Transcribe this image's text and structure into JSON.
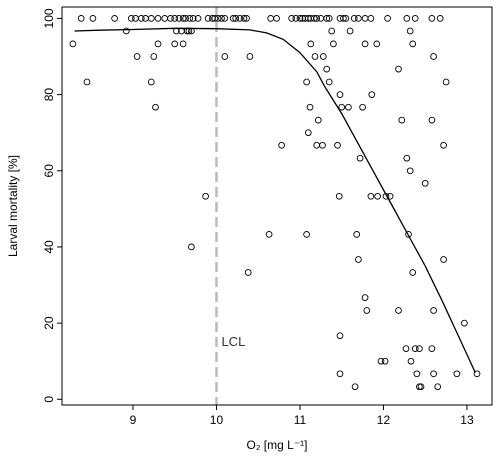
{
  "chart_data": {
    "type": "scatter",
    "xlabel": "O₂ [mg L⁻¹]",
    "ylabel": "Larval mortality [%]",
    "xlim": [
      8.15,
      13.3
    ],
    "ylim": [
      -1.5,
      103
    ],
    "xticks": [
      9,
      10,
      11,
      12,
      13
    ],
    "yticks": [
      0,
      20,
      40,
      60,
      80,
      100
    ],
    "grid": false,
    "legend": "none",
    "annotations": [
      {
        "text": "LCL",
        "x": 10.0,
        "style": "dashed vertical line",
        "color": "#bbbbbb"
      }
    ],
    "series": [
      {
        "kind": "points",
        "marker": "open circle",
        "color": "#000000",
        "points": [
          [
            8.38,
            100
          ],
          [
            8.52,
            100
          ],
          [
            8.78,
            100
          ],
          [
            8.98,
            100
          ],
          [
            9.03,
            100
          ],
          [
            9.1,
            100
          ],
          [
            9.15,
            100
          ],
          [
            9.22,
            100
          ],
          [
            9.3,
            100
          ],
          [
            9.38,
            100
          ],
          [
            9.45,
            100
          ],
          [
            9.5,
            100
          ],
          [
            9.55,
            100
          ],
          [
            9.6,
            100
          ],
          [
            9.63,
            100
          ],
          [
            9.68,
            100
          ],
          [
            9.72,
            100
          ],
          [
            9.78,
            100
          ],
          [
            9.9,
            100
          ],
          [
            9.95,
            100
          ],
          [
            9.98,
            100
          ],
          [
            10.02,
            100
          ],
          [
            10.06,
            100
          ],
          [
            10.1,
            100
          ],
          [
            10.2,
            100
          ],
          [
            10.23,
            100
          ],
          [
            10.28,
            100
          ],
          [
            10.33,
            100
          ],
          [
            10.36,
            100
          ],
          [
            10.65,
            100
          ],
          [
            10.72,
            100
          ],
          [
            10.9,
            100
          ],
          [
            10.95,
            100
          ],
          [
            11.0,
            100
          ],
          [
            11.03,
            100
          ],
          [
            11.06,
            100
          ],
          [
            11.1,
            100
          ],
          [
            11.13,
            100
          ],
          [
            11.17,
            100
          ],
          [
            11.2,
            100
          ],
          [
            11.25,
            100
          ],
          [
            11.32,
            100
          ],
          [
            11.35,
            100
          ],
          [
            11.48,
            100
          ],
          [
            11.52,
            100
          ],
          [
            11.55,
            100
          ],
          [
            11.65,
            100
          ],
          [
            11.7,
            100
          ],
          [
            11.78,
            100
          ],
          [
            11.85,
            100
          ],
          [
            12.05,
            100
          ],
          [
            12.28,
            100
          ],
          [
            12.38,
            100
          ],
          [
            12.58,
            100
          ],
          [
            12.68,
            100
          ],
          [
            8.28,
            93.3
          ],
          [
            8.92,
            96.7
          ],
          [
            9.3,
            93.3
          ],
          [
            9.5,
            93.3
          ],
          [
            9.52,
            96.7
          ],
          [
            9.58,
            96.7
          ],
          [
            9.6,
            93.3
          ],
          [
            9.65,
            96.7
          ],
          [
            9.67,
            96.7
          ],
          [
            9.7,
            96.7
          ],
          [
            11.38,
            96.7
          ],
          [
            11.4,
            93.3
          ],
          [
            11.6,
            96.7
          ],
          [
            11.78,
            93.3
          ],
          [
            11.92,
            93.3
          ],
          [
            12.32,
            96.7
          ],
          [
            12.35,
            93.3
          ],
          [
            8.45,
            83.3
          ],
          [
            9.05,
            90.0
          ],
          [
            9.22,
            83.3
          ],
          [
            9.25,
            90.0
          ],
          [
            10.1,
            90.0
          ],
          [
            10.4,
            90.0
          ],
          [
            11.08,
            83.3
          ],
          [
            11.13,
            93.3
          ],
          [
            11.18,
            90.0
          ],
          [
            11.28,
            90.0
          ],
          [
            11.32,
            86.7
          ],
          [
            11.35,
            83.3
          ],
          [
            11.12,
            76.7
          ],
          [
            11.5,
            76.7
          ],
          [
            11.75,
            76.7
          ],
          [
            11.86,
            80.0
          ],
          [
            12.18,
            86.7
          ],
          [
            12.6,
            90.0
          ],
          [
            12.75,
            83.3
          ],
          [
            9.27,
            76.7
          ],
          [
            11.1,
            70.0
          ],
          [
            11.22,
            73.3
          ],
          [
            11.48,
            80.0
          ],
          [
            11.58,
            76.7
          ],
          [
            12.22,
            73.3
          ],
          [
            12.58,
            73.3
          ],
          [
            10.78,
            66.7
          ],
          [
            11.2,
            66.7
          ],
          [
            11.27,
            66.7
          ],
          [
            11.45,
            66.7
          ],
          [
            11.72,
            63.3
          ],
          [
            12.28,
            63.3
          ],
          [
            12.32,
            60.0
          ],
          [
            12.72,
            66.7
          ],
          [
            12.5,
            56.7
          ],
          [
            9.87,
            53.3
          ],
          [
            11.47,
            53.3
          ],
          [
            11.85,
            53.3
          ],
          [
            11.93,
            53.3
          ],
          [
            12.03,
            53.3
          ],
          [
            12.08,
            53.3
          ],
          [
            9.7,
            40.0
          ],
          [
            10.63,
            43.3
          ],
          [
            11.08,
            43.3
          ],
          [
            11.68,
            43.3
          ],
          [
            11.7,
            36.7
          ],
          [
            12.3,
            43.3
          ],
          [
            12.72,
            36.7
          ],
          [
            10.38,
            33.3
          ],
          [
            12.35,
            33.3
          ],
          [
            11.78,
            26.7
          ],
          [
            11.8,
            23.3
          ],
          [
            12.18,
            23.3
          ],
          [
            11.48,
            16.7
          ],
          [
            12.6,
            23.3
          ],
          [
            12.97,
            20.0
          ],
          [
            11.48,
            6.7
          ],
          [
            11.66,
            3.3
          ],
          [
            11.97,
            10.0
          ],
          [
            12.02,
            10.0
          ],
          [
            12.27,
            13.3
          ],
          [
            12.33,
            10.0
          ],
          [
            12.38,
            13.3
          ],
          [
            12.4,
            6.7
          ],
          [
            12.43,
            13.3
          ],
          [
            12.43,
            3.3
          ],
          [
            12.58,
            13.3
          ],
          [
            12.6,
            6.7
          ],
          [
            12.65,
            3.3
          ],
          [
            12.88,
            6.7
          ],
          [
            13.12,
            6.7
          ],
          [
            12.45,
            3.3
          ]
        ]
      },
      {
        "kind": "line",
        "color": "#000000",
        "points": [
          [
            8.3,
            96.7
          ],
          [
            8.6,
            96.9
          ],
          [
            9.0,
            97.1
          ],
          [
            9.5,
            97.4
          ],
          [
            10.0,
            97.3
          ],
          [
            10.4,
            97.0
          ],
          [
            10.6,
            96.2
          ],
          [
            10.8,
            94.5
          ],
          [
            11.0,
            91.0
          ],
          [
            11.2,
            86.0
          ],
          [
            11.3,
            82.0
          ],
          [
            11.5,
            75.0
          ],
          [
            11.7,
            67.0
          ],
          [
            11.9,
            59.0
          ],
          [
            12.1,
            51.0
          ],
          [
            12.3,
            43.0
          ],
          [
            12.5,
            35.0
          ],
          [
            12.7,
            26.0
          ],
          [
            12.9,
            16.5
          ],
          [
            13.1,
            7.0
          ]
        ]
      }
    ]
  }
}
